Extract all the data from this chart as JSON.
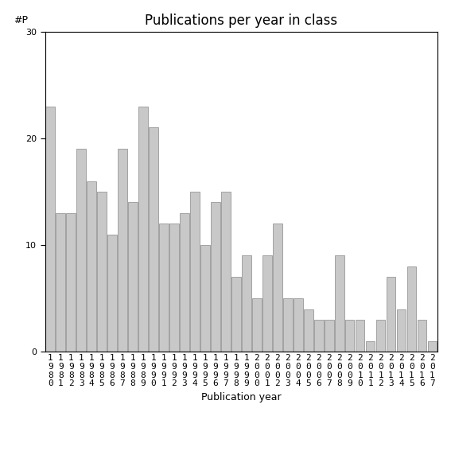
{
  "title": "Publications per year in class",
  "xlabel": "Publication year",
  "ylabel": "#P",
  "years": [
    "1980",
    "1981",
    "1982",
    "1983",
    "1984",
    "1985",
    "1986",
    "1987",
    "1988",
    "1989",
    "1990",
    "1991",
    "1992",
    "1993",
    "1994",
    "1995",
    "1996",
    "1997",
    "1998",
    "1999",
    "2000",
    "2001",
    "2002",
    "2003",
    "2004",
    "2005",
    "2006",
    "2007",
    "2008",
    "2009",
    "2010",
    "2011",
    "2012",
    "2013",
    "2014",
    "2015",
    "2016",
    "2017"
  ],
  "values": [
    23,
    13,
    13,
    19,
    16,
    15,
    11,
    19,
    14,
    23,
    21,
    12,
    12,
    13,
    15,
    10,
    14,
    15,
    7,
    9,
    5,
    9,
    12,
    5,
    5,
    4,
    3,
    3,
    9,
    3,
    3,
    1,
    3,
    7,
    4,
    8,
    3,
    1
  ],
  "bar_color": "#c8c8c8",
  "bar_edgecolor": "#888888",
  "ylim": [
    0,
    30
  ],
  "yticks": [
    0,
    10,
    20,
    30
  ],
  "background_color": "#ffffff",
  "title_fontsize": 12,
  "label_fontsize": 9,
  "tick_fontsize": 8
}
